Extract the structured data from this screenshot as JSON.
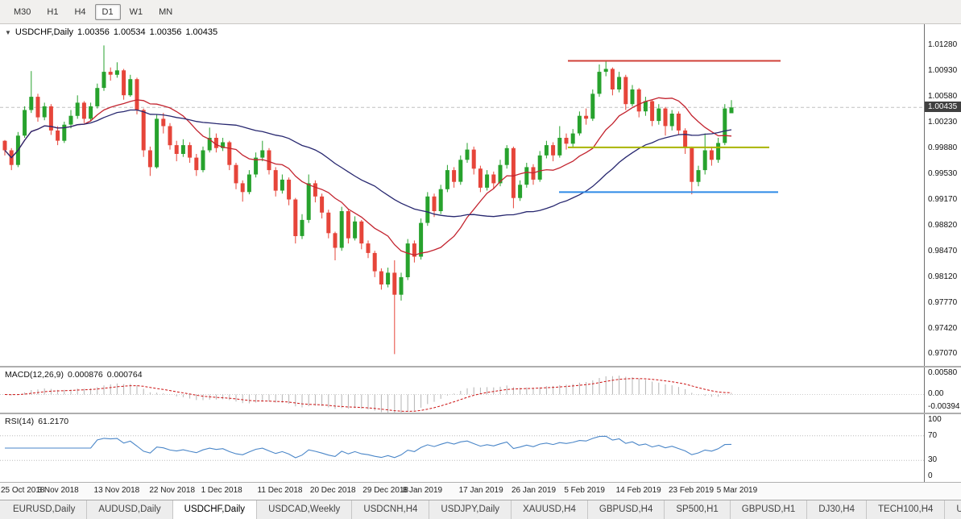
{
  "toolbar": {
    "timeframes": [
      {
        "label": "M30",
        "active": false
      },
      {
        "label": "H1",
        "active": false
      },
      {
        "label": "H4",
        "active": false
      },
      {
        "label": "D1",
        "active": true
      },
      {
        "label": "W1",
        "active": false
      },
      {
        "label": "MN",
        "active": false
      }
    ]
  },
  "chart_data": {
    "type": "candlestick",
    "symbol_line": {
      "symbol": "USDCHF,Daily",
      "open": "1.00356",
      "high": "1.00534",
      "low": "1.00356",
      "close": "1.00435"
    },
    "current_price_label": "1.00435",
    "current_price": 1.00435,
    "price_axis_ticks": [
      "1.01280",
      "1.00930",
      "1.00580",
      "1.00230",
      "0.99880",
      "0.99530",
      "0.99170",
      "0.98820",
      "0.98470",
      "0.98120",
      "0.97770",
      "0.97420",
      "0.97070"
    ],
    "price_range": {
      "top": 1.0157,
      "bottom": 0.9691
    },
    "colors": {
      "up": "#27a22d",
      "down": "#e6453a",
      "bid_line": "#c0c0c0"
    },
    "moving_averages": [
      {
        "name": "ma-fast",
        "period": 13,
        "color": "#c3242f"
      },
      {
        "name": "ma-slow",
        "period": 34,
        "color": "#27276f"
      }
    ],
    "overlay_lines": [
      {
        "name": "resistance-line",
        "color": "#d04038",
        "price": 1.0107,
        "x1": 0.615,
        "x2": 0.845
      },
      {
        "name": "breakout-line",
        "color": "#a9b400",
        "price": 0.9989,
        "x1": 0.615,
        "x2": 0.833
      },
      {
        "name": "support-line",
        "color": "#2e8ae6",
        "price": 0.9928,
        "x1": 0.605,
        "x2": 0.842
      }
    ],
    "candles": [
      [
        0.9998,
        0.9999,
        0.9978,
        0.9985
      ],
      [
        0.9985,
        0.9988,
        0.9958,
        0.9965
      ],
      [
        0.9965,
        1.001,
        0.9962,
        1.0005
      ],
      [
        1.0005,
        1.0045,
        1.0002,
        1.004
      ],
      [
        1.004,
        1.0093,
        1.0036,
        1.0058
      ],
      [
        1.0058,
        1.0062,
        1.0024,
        1.003
      ],
      [
        1.003,
        1.005,
        1.0026,
        1.0045
      ],
      [
        1.0045,
        1.0048,
        1.0006,
        1.0012
      ],
      [
        1.0012,
        1.0018,
        0.9992,
        0.9998
      ],
      [
        0.9998,
        1.0024,
        0.9995,
        1.002
      ],
      [
        1.002,
        1.004,
        1.0015,
        1.0032
      ],
      [
        1.0032,
        1.006,
        1.0028,
        1.005
      ],
      [
        1.005,
        1.0052,
        1.0022,
        1.0028
      ],
      [
        1.0028,
        1.005,
        1.0024,
        1.0045
      ],
      [
        1.0045,
        1.0076,
        1.0042,
        1.007
      ],
      [
        1.007,
        1.0128,
        1.0066,
        1.0092
      ],
      [
        1.0092,
        1.0098,
        1.008,
        1.0088
      ],
      [
        1.0088,
        1.0105,
        1.0084,
        1.0094
      ],
      [
        1.0094,
        1.0096,
        1.0054,
        1.006
      ],
      [
        1.006,
        1.0088,
        1.0058,
        1.0082
      ],
      [
        1.0082,
        1.0084,
        1.0034,
        1.004
      ],
      [
        1.004,
        1.0042,
        0.9976,
        0.9985
      ],
      [
        0.9985,
        0.999,
        0.995,
        0.9962
      ],
      [
        0.9962,
        1.0034,
        0.996,
        1.0028
      ],
      [
        1.0028,
        1.0036,
        1.0008,
        1.0018
      ],
      [
        1.0018,
        1.0022,
        0.9986,
        0.9992
      ],
      [
        0.9992,
        0.9998,
        0.997,
        0.998
      ],
      [
        0.998,
        1.0,
        0.9976,
        0.9992
      ],
      [
        0.9992,
        0.9996,
        0.9968,
        0.9975
      ],
      [
        0.9975,
        0.998,
        0.995,
        0.9958
      ],
      [
        0.9958,
        0.999,
        0.9955,
        0.9985
      ],
      [
        0.9985,
        1.0016,
        0.9982,
        1.0002
      ],
      [
        1.0002,
        1.0008,
        0.9982,
        0.9988
      ],
      [
        0.9988,
        1.0002,
        0.9984,
        0.9996
      ],
      [
        0.9996,
        0.9998,
        0.9958,
        0.9965
      ],
      [
        0.9965,
        0.9968,
        0.9932,
        0.994
      ],
      [
        0.994,
        0.9944,
        0.9915,
        0.9928
      ],
      [
        0.9928,
        0.9958,
        0.9925,
        0.9952
      ],
      [
        0.9952,
        0.9982,
        0.9948,
        0.9975
      ],
      [
        0.9975,
        0.9998,
        0.997,
        0.9985
      ],
      [
        0.9985,
        0.9988,
        0.9952,
        0.9958
      ],
      [
        0.9958,
        0.9962,
        0.9922,
        0.993
      ],
      [
        0.993,
        0.9952,
        0.9926,
        0.9945
      ],
      [
        0.9945,
        0.9948,
        0.991,
        0.9918
      ],
      [
        0.9918,
        0.992,
        0.9858,
        0.9868
      ],
      [
        0.9868,
        0.9898,
        0.9864,
        0.989
      ],
      [
        0.989,
        0.9952,
        0.9886,
        0.994
      ],
      [
        0.994,
        0.9944,
        0.9914,
        0.9922
      ],
      [
        0.9922,
        0.9926,
        0.9892,
        0.99
      ],
      [
        0.99,
        0.9904,
        0.9865,
        0.9872
      ],
      [
        0.9872,
        0.9874,
        0.9835,
        0.9852
      ],
      [
        0.9852,
        0.9908,
        0.9848,
        0.9902
      ],
      [
        0.9902,
        0.9904,
        0.9858,
        0.9865
      ],
      [
        0.9865,
        0.9895,
        0.9862,
        0.9888
      ],
      [
        0.9888,
        0.989,
        0.985,
        0.9858
      ],
      [
        0.9858,
        0.9862,
        0.9838,
        0.9845
      ],
      [
        0.9845,
        0.9848,
        0.9812,
        0.982
      ],
      [
        0.982,
        0.9824,
        0.9795,
        0.9802
      ],
      [
        0.9802,
        0.9825,
        0.9798,
        0.9818
      ],
      [
        0.9818,
        0.9835,
        0.9707,
        0.9788
      ],
      [
        0.9788,
        0.9818,
        0.978,
        0.9812
      ],
      [
        0.9812,
        0.9864,
        0.9808,
        0.9858
      ],
      [
        0.9858,
        0.9862,
        0.9832,
        0.984
      ],
      [
        0.984,
        0.9892,
        0.9836,
        0.9886
      ],
      [
        0.9886,
        0.9928,
        0.9882,
        0.9922
      ],
      [
        0.9922,
        0.9926,
        0.9894,
        0.9902
      ],
      [
        0.9902,
        0.9938,
        0.9898,
        0.9932
      ],
      [
        0.9932,
        0.9965,
        0.9928,
        0.9958
      ],
      [
        0.9958,
        0.9962,
        0.9934,
        0.9942
      ],
      [
        0.9942,
        0.9978,
        0.9938,
        0.9972
      ],
      [
        0.9972,
        0.9995,
        0.9968,
        0.9986
      ],
      [
        0.9986,
        0.999,
        0.9952,
        0.996
      ],
      [
        0.996,
        0.9964,
        0.9928,
        0.9934
      ],
      [
        0.9934,
        0.9958,
        0.993,
        0.9952
      ],
      [
        0.9952,
        0.9956,
        0.9932,
        0.994
      ],
      [
        0.994,
        0.9972,
        0.9936,
        0.9965
      ],
      [
        0.9965,
        0.9992,
        0.996,
        0.9988
      ],
      [
        0.9988,
        0.999,
        0.9906,
        0.992
      ],
      [
        0.992,
        0.9944,
        0.9916,
        0.9938
      ],
      [
        0.9938,
        0.9968,
        0.9934,
        0.9962
      ],
      [
        0.9962,
        0.9966,
        0.9938,
        0.9945
      ],
      [
        0.9945,
        0.9984,
        0.9942,
        0.9978
      ],
      [
        0.9978,
        0.9998,
        0.9974,
        0.9992
      ],
      [
        0.9992,
        0.9996,
        0.997,
        0.9978
      ],
      [
        0.9978,
        1.0018,
        0.9975,
        1.0002
      ],
      [
        1.0002,
        1.0008,
        0.9986,
        0.9994
      ],
      [
        0.9994,
        1.0014,
        0.9988,
        1.0008
      ],
      [
        1.0008,
        1.0038,
        1.0005,
        1.0032
      ],
      [
        1.0032,
        1.0042,
        1.002,
        1.0028
      ],
      [
        1.0028,
        1.0068,
        1.0025,
        1.0062
      ],
      [
        1.0062,
        1.0102,
        1.0058,
        1.0092
      ],
      [
        1.0092,
        1.0106,
        1.0086,
        1.0096
      ],
      [
        1.0096,
        1.0098,
        1.006,
        1.0068
      ],
      [
        1.0068,
        1.0092,
        1.0064,
        1.0085
      ],
      [
        1.0085,
        1.0088,
        1.004,
        1.0048
      ],
      [
        1.0048,
        1.0074,
        1.0045,
        1.0068
      ],
      [
        1.0068,
        1.007,
        1.003,
        1.0038
      ],
      [
        1.0038,
        1.0058,
        1.0032,
        1.0052
      ],
      [
        1.0052,
        1.0054,
        1.0018,
        1.0025
      ],
      [
        1.0025,
        1.0048,
        1.002,
        1.0042
      ],
      [
        1.0042,
        1.0044,
        1.0005,
        1.0018
      ],
      [
        1.0018,
        1.004,
        1.0012,
        1.0035
      ],
      [
        1.0035,
        1.0038,
        1.0006,
        1.0012
      ],
      [
        1.0012,
        1.0015,
        0.998,
        0.9988
      ],
      [
        0.9988,
        0.999,
        0.9925,
        0.9942
      ],
      [
        0.9942,
        0.9964,
        0.9936,
        0.9958
      ],
      [
        0.9958,
        1.0008,
        0.9952,
        0.9985
      ],
      [
        0.9985,
        0.999,
        0.9964,
        0.9972
      ],
      [
        0.9972,
        1.0002,
        0.9968,
        0.9995
      ],
      [
        0.9995,
        1.0048,
        0.9992,
        1.0042
      ],
      [
        1.00356,
        1.00534,
        1.00356,
        1.00435
      ]
    ]
  },
  "macd": {
    "name": "MACD(12,26,9)",
    "value_main": "0.000876",
    "value_signal": "0.000764",
    "axis_labels": [
      "0.00580",
      "0.00",
      "-0.00394"
    ],
    "scale": {
      "top": 0.0058,
      "bottom": -0.0039
    },
    "histogram_color": "#b4b4b4",
    "signal_color": "#cc1111",
    "params": {
      "fast": 12,
      "slow": 26,
      "signal": 9
    }
  },
  "rsi": {
    "name": "RSI(14)",
    "value": "61.2170",
    "period": 14,
    "axis_labels": [
      "100",
      "70",
      "30",
      "0"
    ],
    "levels": [
      70,
      30
    ],
    "line_color": "#4a86c8",
    "level_color": "#bbbbbb"
  },
  "time_axis": {
    "labels": [
      {
        "text": "25 Oct 2018",
        "pos": 0.004
      },
      {
        "text": "3 Nov 2018",
        "pos": 0.065
      },
      {
        "text": "13 Nov 2018",
        "pos": 0.126
      },
      {
        "text": "22 Nov 2018",
        "pos": 0.186
      },
      {
        "text": "1 Dec 2018",
        "pos": 0.242
      },
      {
        "text": "11 Dec 2018",
        "pos": 0.303
      },
      {
        "text": "20 Dec 2018",
        "pos": 0.36
      },
      {
        "text": "29 Dec 2018",
        "pos": 0.417
      },
      {
        "text": "8 Jan 2019",
        "pos": 0.46
      },
      {
        "text": "17 Jan 2019",
        "pos": 0.521
      },
      {
        "text": "26 Jan 2019",
        "pos": 0.578
      },
      {
        "text": "5 Feb 2019",
        "pos": 0.635
      },
      {
        "text": "14 Feb 2019",
        "pos": 0.691
      },
      {
        "text": "23 Feb 2019",
        "pos": 0.748
      },
      {
        "text": "5 Mar 2019",
        "pos": 0.8
      }
    ]
  },
  "tabs": [
    {
      "label": "EURUSD,Daily",
      "active": false
    },
    {
      "label": "AUDUSD,Daily",
      "active": false
    },
    {
      "label": "USDCHF,Daily",
      "active": true
    },
    {
      "label": "USDCAD,Weekly",
      "active": false
    },
    {
      "label": "USDCNH,H4",
      "active": false
    },
    {
      "label": "USDJPY,Daily",
      "active": false
    },
    {
      "label": "XAUUSD,H4",
      "active": false
    },
    {
      "label": "GBPUSD,H4",
      "active": false
    },
    {
      "label": "SP500,H1",
      "active": false
    },
    {
      "label": "GBPUSD,H1",
      "active": false
    },
    {
      "label": "DJ30,H4",
      "active": false
    },
    {
      "label": "TECH100,H4",
      "active": false
    },
    {
      "label": "UKC",
      "active": false
    }
  ]
}
